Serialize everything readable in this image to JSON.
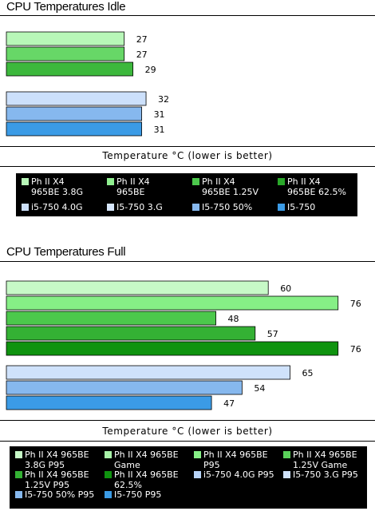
{
  "chart_data": [
    {
      "type": "bar",
      "orientation": "horizontal",
      "title": "CPU Temperatures Idle",
      "xlabel": "Temperature °C (lower is better)",
      "xlim": [
        0,
        80
      ],
      "groups": [
        {
          "bars": [
            {
              "series": "Ph II X4 965BE 3.8G",
              "value": 27,
              "label": "27",
              "color": "#b8f7b8"
            },
            {
              "series": "Ph II X4 965BE",
              "value": 27,
              "label": "27",
              "color": "#67d767"
            },
            {
              "series": "Ph II X4 965BE 1.25V",
              "value": 29,
              "label": "29",
              "color": "#3cb83c"
            }
          ]
        },
        {
          "bars": [
            {
              "series": "I5-750 3.G",
              "value": 32,
              "label": "32",
              "color": "#cce0fb"
            },
            {
              "series": "I5-750 50%",
              "value": 31,
              "label": "31",
              "color": "#86b8ee"
            },
            {
              "series": "I5-750",
              "value": 31,
              "label": "31",
              "color": "#3b9be6"
            }
          ]
        }
      ],
      "legend": [
        {
          "text": "Ph II X4\n965BE 3.8G",
          "color": "#b8f7b8"
        },
        {
          "text": "Ph II X4\n965BE",
          "color": "#90ef90"
        },
        {
          "text": "Ph II X4\n965BE 1.25V",
          "color": "#4cc84c"
        },
        {
          "text": "Ph II X4\n965BE 62.5%",
          "color": "#2aa82a"
        },
        {
          "text": "i5-750 4.0G",
          "color": "#cce0fb"
        },
        {
          "text": "I5-750 3.G",
          "color": "#d6e6fb"
        },
        {
          "text": "I5-750 50%",
          "color": "#86b8ee"
        },
        {
          "text": "I5-750",
          "color": "#3b9be6"
        }
      ]
    },
    {
      "type": "bar",
      "orientation": "horizontal",
      "title": "CPU Temperatures Full",
      "xlabel": "Temperature °C (lower is better)",
      "xlim": [
        0,
        80
      ],
      "groups": [
        {
          "bars": [
            {
              "series": "Ph II X4 965BE 3.8G P95",
              "value": 60,
              "label": "60",
              "color": "#c7f9c7"
            },
            {
              "series": "Ph II X4 965BE Game",
              "value": 76,
              "label": "76",
              "color": "#86ef86"
            },
            {
              "series": "Ph II X4 965BE P95",
              "value": 48,
              "label": "48",
              "color": "#4cc84c"
            },
            {
              "series": "Ph II X4 965BE 1.25V Game",
              "value": 57,
              "label": "57",
              "color": "#34b134"
            },
            {
              "series": "Ph II X4 965BE 62.5%",
              "value": 76,
              "label": "76",
              "color": "#0f930f"
            }
          ]
        },
        {
          "bars": [
            {
              "series": "I5-750 3.G P95",
              "value": 65,
              "label": "65",
              "color": "#cfe2fb"
            },
            {
              "series": "I5-750 50% P95",
              "value": 54,
              "label": "54",
              "color": "#86b8ee"
            },
            {
              "series": "I5-750 P95",
              "value": 47,
              "label": "47",
              "color": "#3b9be6"
            }
          ]
        }
      ],
      "legend": [
        {
          "text": "Ph II X4 965BE\n3.8G P95",
          "color": "#c7f9c7"
        },
        {
          "text": "Ph II X4 965BE\nGame",
          "color": "#a8f3a8"
        },
        {
          "text": "Ph II X4 965BE\nP95",
          "color": "#86ef86"
        },
        {
          "text": "Ph II X4 965BE\n1.25V Game",
          "color": "#5ad05a"
        },
        {
          "text": "Ph II X4 965BE\n1.25V P95",
          "color": "#34b134"
        },
        {
          "text": "Ph II X4 965BE\n62.5%",
          "color": "#0f930f"
        },
        {
          "text": "i5-750 4.0G P95",
          "color": "#b8d4f8"
        },
        {
          "text": "I5-750 3.G P95",
          "color": "#cfe2fb"
        },
        {
          "text": "I5-750 50% P95",
          "color": "#86b8ee"
        },
        {
          "text": "I5-750 P95",
          "color": "#3b9be6"
        }
      ]
    }
  ]
}
